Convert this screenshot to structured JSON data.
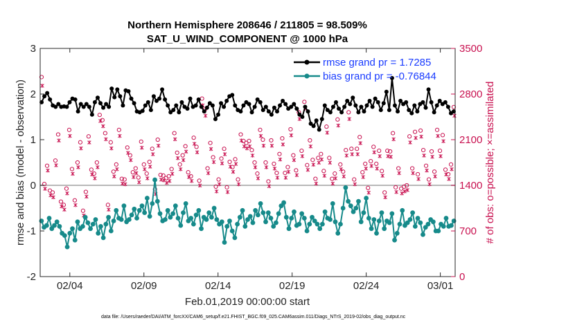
{
  "chart_data": {
    "type": "line",
    "title": "Northern Hemisphere 208646 / 211805 = 98.509%",
    "subtitle": "SAT_U_WIND_COMPONENT @ 1000 hPa",
    "xlabel": "Feb.01,2019 00:00:00 start",
    "ylabel": "rmse and bias (model - observation)",
    "ylabel_right": "# of obs: o=possible; ×=assimilated",
    "footnote": "data file: /Users/raeder/DAI/ATM_forcXX/CAM6_setup/f.e21.FHIST_BGC.f09_025.CAM6assim.011/Diags_NTrS_2019-02/obs_diag_output.nc",
    "xlim": [
      1,
      29
    ],
    "ylim": [
      -2,
      3
    ],
    "ylim_right": [
      0,
      3500
    ],
    "x_ticks": [
      3,
      8,
      13,
      18,
      23,
      28
    ],
    "x_tick_labels": [
      "02/04",
      "02/09",
      "02/14",
      "02/19",
      "02/24",
      "03/01"
    ],
    "y_ticks": [
      -2,
      -1,
      0,
      1,
      2,
      3
    ],
    "y_tick_labels": [
      "-2",
      "-1",
      "0",
      "1",
      "2",
      "3"
    ],
    "y_right_ticks": [
      0,
      700,
      1400,
      2100,
      2800,
      3500
    ],
    "y_right_tick_labels": [
      "0",
      "700",
      "1400",
      "2100",
      "2800",
      "3500"
    ],
    "legend_position": "top-right",
    "series": [
      {
        "name": "rmse grand pr = 1.7285",
        "color": "#000000",
        "marker": "asterisk",
        "values": [
          1.82,
          1.95,
          2.02,
          1.88,
          1.75,
          1.72,
          1.78,
          1.72,
          1.73,
          1.72,
          1.82,
          1.9,
          1.88,
          1.62,
          1.78,
          1.72,
          1.78,
          1.72,
          1.55,
          1.82,
          1.92,
          1.8,
          1.7,
          1.78,
          1.72,
          2.12,
          1.93,
          2.1,
          1.95,
          1.75,
          2.08,
          2.06,
          1.9,
          1.8,
          1.62,
          1.6,
          1.63,
          1.75,
          1.82,
          1.65,
          1.95,
          1.85,
          1.9,
          2.1,
          1.88,
          1.75,
          1.6,
          1.65,
          1.75,
          1.6,
          1.82,
          1.72,
          1.68,
          1.9,
          1.72,
          1.75,
          1.88,
          1.72,
          1.62,
          1.7,
          1.8,
          1.75,
          1.45,
          1.55,
          1.8,
          1.72,
          1.85,
          1.95,
          1.98,
          1.75,
          1.65,
          1.62,
          1.75,
          1.82,
          1.78,
          1.6,
          1.72,
          1.88,
          1.82,
          1.65,
          1.72,
          1.62,
          1.55,
          1.7,
          1.62,
          1.75,
          1.85,
          1.78,
          1.68,
          1.72,
          1.78,
          1.68,
          1.55,
          1.5,
          1.72,
          1.62,
          1.35,
          1.3,
          1.42,
          1.22,
          1.45,
          1.75,
          1.65,
          1.6,
          1.72,
          1.82,
          1.68,
          1.6,
          1.72,
          1.85,
          1.78,
          1.92,
          1.75,
          1.6,
          1.72,
          1.62,
          1.75,
          1.85,
          1.72,
          1.9,
          1.82,
          1.65,
          1.8,
          2.05,
          1.65,
          2.35,
          1.75,
          1.62,
          1.85,
          1.78,
          1.82,
          1.65,
          1.58,
          1.75,
          1.62,
          1.78,
          1.82,
          1.7,
          2.1,
          1.82,
          1.6,
          1.75,
          1.85,
          1.78,
          1.82,
          1.72,
          1.58,
          1.62
        ]
      },
      {
        "name": "bias grand pr = -0.76844",
        "color": "#168a8a",
        "marker": "dot",
        "values": [
          -0.78,
          -0.92,
          -0.88,
          -0.72,
          -0.95,
          -0.88,
          -0.8,
          -0.9,
          -1.05,
          -1.1,
          -1.35,
          -1.05,
          -0.95,
          -1.2,
          -0.8,
          -0.95,
          -0.9,
          -0.7,
          -0.82,
          -0.95,
          -0.85,
          -0.75,
          -1.05,
          -0.9,
          -1.15,
          -0.85,
          -0.7,
          -1.0,
          -0.78,
          -0.55,
          -0.72,
          -0.75,
          -0.45,
          -0.8,
          -0.75,
          -0.65,
          -0.52,
          -0.72,
          -0.55,
          -0.45,
          -0.6,
          -0.28,
          -0.68,
          -0.4,
          0.12,
          -0.35,
          -0.62,
          -0.78,
          -0.75,
          -0.55,
          -0.7,
          -0.62,
          -0.45,
          -0.72,
          -0.88,
          -0.6,
          -0.4,
          -0.78,
          -0.72,
          -0.85,
          -0.65,
          -0.55,
          -0.95,
          -0.7,
          -0.75,
          -0.6,
          -0.7,
          -0.5,
          -0.75,
          -0.85,
          -0.8,
          -1.25,
          -0.9,
          -0.78,
          -1.0,
          -1.15,
          -0.85,
          -0.7,
          -0.55,
          -0.9,
          -0.75,
          -0.68,
          -0.82,
          -0.55,
          -0.65,
          -0.4,
          -0.6,
          -0.8,
          -0.6,
          -0.72,
          -0.9,
          -0.82,
          -0.62,
          -0.45,
          -0.38,
          -0.7,
          -0.95,
          -0.72,
          -0.58,
          -0.88,
          -0.85,
          -0.62,
          -0.72,
          -1.0,
          -0.85,
          -0.7,
          -0.78,
          -0.85,
          -0.95,
          -0.85,
          -0.58,
          -0.72,
          -0.75,
          -0.4,
          -0.8,
          -1.05,
          -0.85,
          -0.5,
          -0.05,
          -0.35,
          -0.45,
          -0.58,
          -0.5,
          -0.35,
          -0.8,
          -0.6,
          -0.28,
          -0.72,
          -0.95,
          -0.75,
          -1.05,
          -0.78,
          -0.6,
          -0.95,
          -0.78,
          -0.82,
          -0.62,
          -1.2,
          -1.05,
          -0.85,
          -0.55,
          -0.88,
          -0.82,
          -0.75,
          -0.6,
          -0.9,
          -0.72,
          -0.82,
          -1.08,
          -0.92,
          -0.85,
          -0.75,
          -0.8,
          -1.0,
          -1.0,
          -0.85,
          -0.9,
          -0.72,
          -0.9,
          -0.88,
          -0.78
        ]
      }
    ],
    "obs_series": [
      {
        "name": "possible",
        "color": "#c8104f",
        "marker": "circle",
        "values": [
          3060,
          1420,
          1700,
          1320,
          1290,
          1780,
          2180,
          1150,
          1100,
          1350,
          2250,
          1650,
          1170,
          1750,
          2060,
          1010,
          1300,
          2150,
          1640,
          1580,
          1750,
          2480,
          2400,
          2200,
          1100,
          2060,
          1610,
          1720,
          2250,
          1500,
          1490,
          1980,
          1860,
          1600,
          1660,
          1520,
          2070,
          1720,
          1580,
          1760,
          1960,
          1340,
          2100,
          1560,
          1550,
          1510,
          1540,
          1650,
          2200,
          1900,
          1720,
          1860,
          2000,
          1600,
          1540,
          2130,
          1990,
          1470,
          2730,
          2560,
          1660,
          2050,
          1830,
          1380,
          1490,
          1810,
          1960,
          1370,
          1760,
          1680,
          1800,
          1490,
          2180,
          2080,
          2050,
          2080,
          1940,
          1750,
          1580,
          2250,
          2100,
          1750,
          1460,
          2090,
          1730,
          1590,
          1880,
          2120,
          1590,
          1680,
          2260,
          1860,
          1630,
          2520,
          1930,
          2680,
          1710,
          2090,
          1790,
          1500,
          1820,
          1880,
          1620,
          2300,
          1820,
          1500,
          1580,
          2410,
          1720,
          1610,
          1940,
          2520,
          1960,
          1490,
          1960,
          2140,
          1600,
          1730,
          1360,
          1770,
          1990,
          1730,
          1930,
          1620,
          1290,
          1930,
          1920,
          2200,
          1370,
          1660,
          1350,
          1380,
          1400,
          2150,
          1660,
          2220,
          1570,
          2240,
          1940,
          1700,
          1490,
          1920,
          1610,
          2250,
          1930,
          2170,
          1640,
          1570,
          1720,
          2600
        ]
      },
      {
        "name": "assimilated",
        "color": "#c8104f",
        "marker": "cross",
        "values": [
          2980,
          1400,
          1680,
          1300,
          1270,
          1760,
          2140,
          1130,
          1080,
          1330,
          2210,
          1630,
          1150,
          1730,
          2020,
          990,
          1280,
          2110,
          1620,
          1560,
          1730,
          2440,
          2360,
          2160,
          1080,
          2020,
          1590,
          1700,
          2210,
          1480,
          1470,
          1950,
          1840,
          1580,
          1640,
          1500,
          2030,
          1700,
          1560,
          1740,
          1930,
          1320,
          2060,
          1540,
          1530,
          1490,
          1520,
          1630,
          2160,
          1870,
          1700,
          1840,
          1970,
          1580,
          1520,
          2090,
          1960,
          1450,
          2680,
          2520,
          1640,
          2010,
          1810,
          1360,
          1470,
          1790,
          1930,
          1350,
          1740,
          1660,
          1780,
          1470,
          2140,
          2050,
          2020,
          2050,
          1910,
          1730,
          1560,
          2210,
          2060,
          1730,
          1440,
          2060,
          1710,
          1570,
          1850,
          2080,
          1570,
          1660,
          2220,
          1840,
          1610,
          2470,
          1900,
          2630,
          1690,
          2050,
          1770,
          1480,
          1800,
          1850,
          1600,
          2260,
          1800,
          1480,
          1560,
          2370,
          1700,
          1590,
          1910,
          2470,
          1930,
          1470,
          1930,
          2100,
          1580,
          1710,
          1340,
          1750,
          1960,
          1710,
          1900,
          1600,
          1270,
          1900,
          1890,
          2160,
          1350,
          1640,
          1330,
          1360,
          1380,
          2110,
          1640,
          2180,
          1550,
          2200,
          1910,
          1680,
          1470,
          1890,
          1590,
          2210,
          1900,
          2130,
          1620,
          1550,
          1700,
          2520
        ]
      }
    ]
  }
}
